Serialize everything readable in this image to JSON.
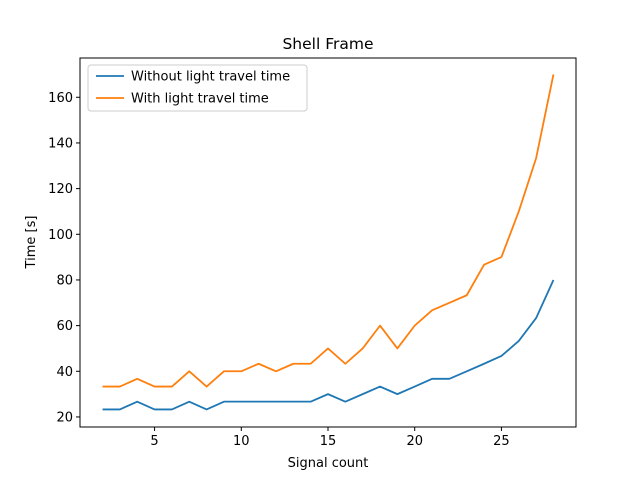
{
  "chart_data": {
    "type": "line",
    "title": "Shell Frame",
    "xlabel": "Signal count",
    "ylabel": "Time [s]",
    "xlim": [
      0.7,
      29.3
    ],
    "ylim": [
      15.6,
      177.2
    ],
    "xticks": [
      5,
      10,
      15,
      20,
      25
    ],
    "yticks": [
      20,
      40,
      60,
      80,
      100,
      120,
      140,
      160
    ],
    "grid": false,
    "legend_position": "upper-left",
    "x": [
      2,
      3,
      4,
      5,
      6,
      7,
      8,
      9,
      10,
      11,
      12,
      13,
      14,
      15,
      16,
      17,
      18,
      19,
      20,
      21,
      22,
      23,
      24,
      25,
      26,
      27,
      28
    ],
    "series": [
      {
        "name": "Without light travel time",
        "color": "#1f77b4",
        "values": [
          23.3,
          23.3,
          26.7,
          23.3,
          23.3,
          26.7,
          23.3,
          26.7,
          26.7,
          26.7,
          26.7,
          26.7,
          26.7,
          30.0,
          26.7,
          30.0,
          33.3,
          30.0,
          33.3,
          36.7,
          36.7,
          40.0,
          43.3,
          46.7,
          53.3,
          63.3,
          80.0
        ]
      },
      {
        "name": "With light travel time",
        "color": "#ff7f0e",
        "values": [
          33.3,
          33.3,
          36.7,
          33.3,
          33.3,
          40.0,
          33.3,
          40.0,
          40.0,
          43.3,
          40.0,
          43.3,
          43.3,
          50.0,
          43.3,
          50.0,
          60.0,
          50.0,
          60.0,
          66.7,
          70.0,
          73.3,
          86.7,
          90.0,
          110.0,
          133.3,
          170.0
        ]
      }
    ]
  }
}
